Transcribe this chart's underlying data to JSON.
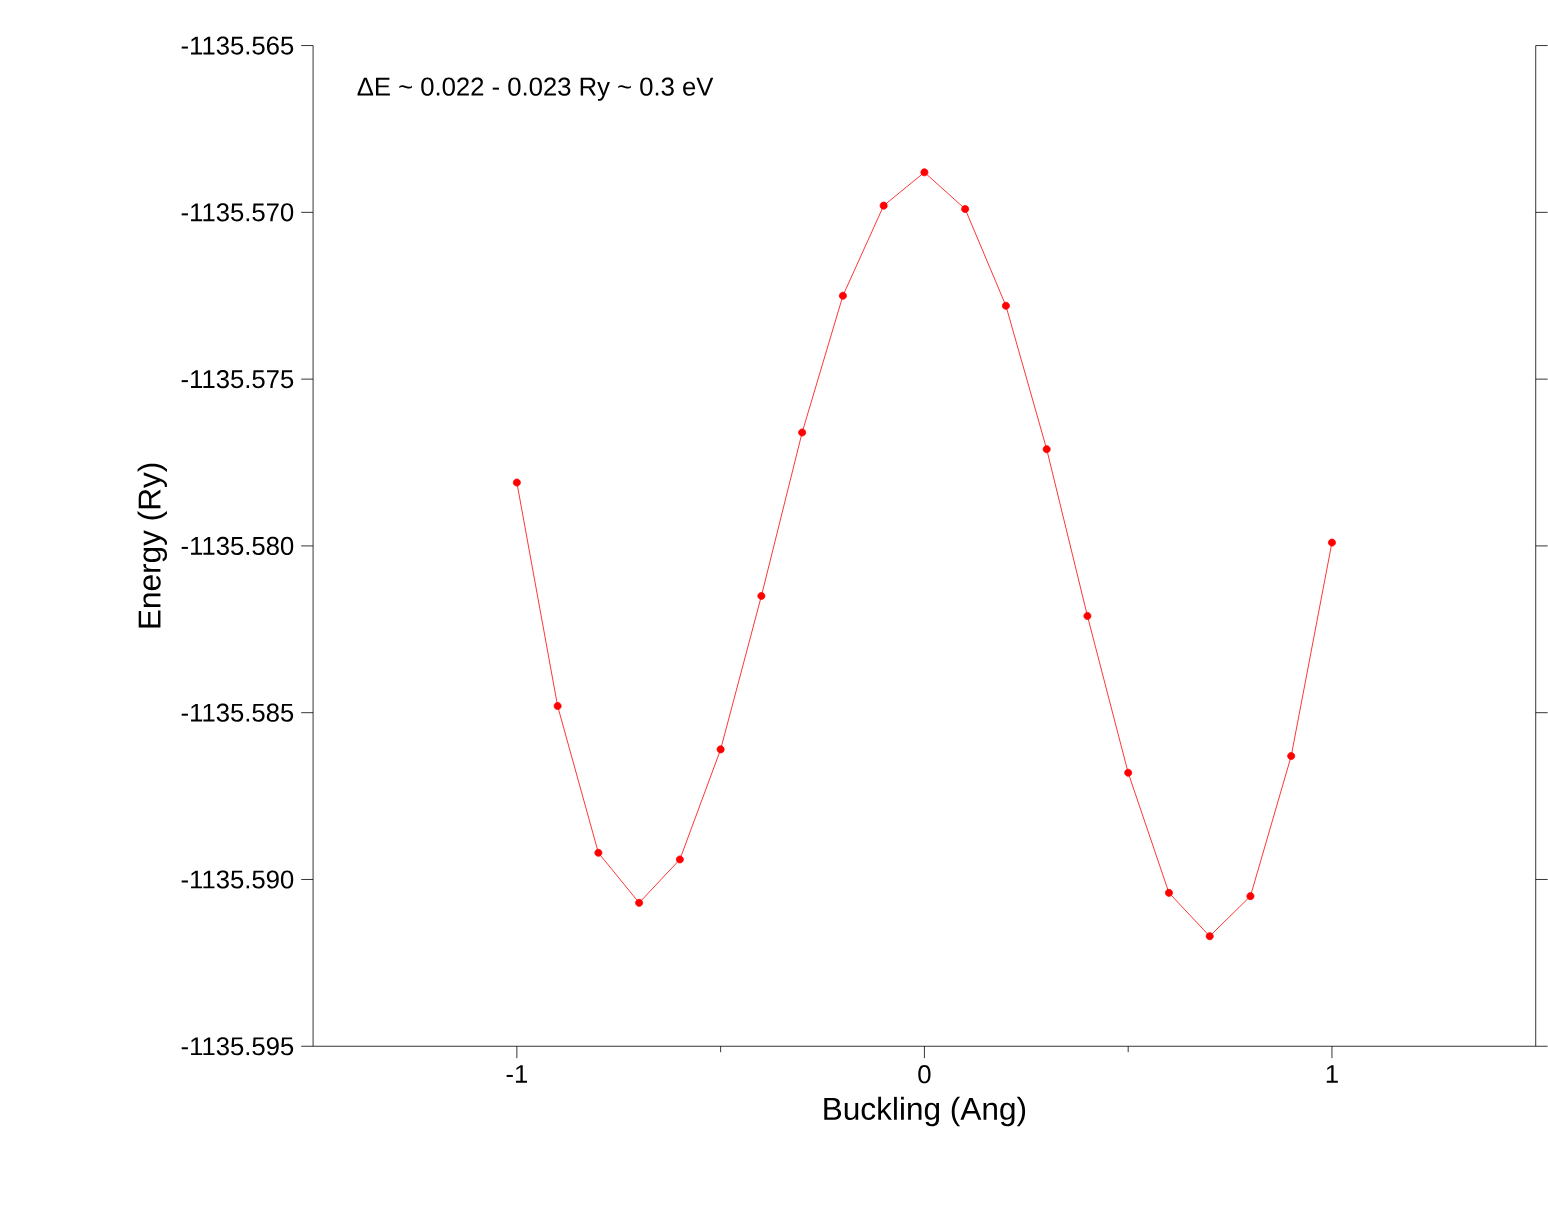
{
  "chart_data": {
    "type": "line",
    "xlabel": "Buckling (Ang)",
    "ylabel": "Energy (Ry)",
    "annotations": [
      "ΔE ~ 0.022 - 0.023 Ry ~ 0.3 eV"
    ],
    "x": [
      -1.0,
      -0.9,
      -0.8,
      -0.7,
      -0.6,
      -0.5,
      -0.4,
      -0.3,
      -0.2,
      -0.1,
      0.0,
      0.1,
      0.2,
      0.3,
      0.4,
      0.5,
      0.6,
      0.7,
      0.8,
      0.9,
      1.0
    ],
    "series": [
      {
        "color": "#ff0000",
        "values": [
          -1135.5781,
          -1135.5848,
          -1135.5892,
          -1135.5907,
          -1135.5894,
          -1135.5861,
          -1135.5815,
          -1135.5766,
          -1135.5725,
          -1135.5698,
          -1135.5688,
          -1135.5699,
          -1135.5728,
          -1135.5771,
          -1135.5821,
          -1135.5868,
          -1135.5904,
          -1135.5917,
          -1135.5905,
          -1135.5863,
          -1135.5799
        ]
      }
    ],
    "marker": "circle",
    "line_style": "solid",
    "xlim": [
      -1.5,
      1.5
    ],
    "xticks": [
      -1,
      0,
      1
    ],
    "ylim": [
      -1135.595,
      -1135.565
    ],
    "yticks": [
      {
        "value": -1135.595,
        "label": "-1135.595"
      },
      {
        "value": -1135.59,
        "label": "-1135.590"
      },
      {
        "value": -1135.585,
        "label": "-1135.585"
      },
      {
        "value": -1135.58,
        "label": "-1135.580"
      },
      {
        "value": -1135.575,
        "label": "-1135.575"
      },
      {
        "value": -1135.57,
        "label": "-1135.570"
      },
      {
        "value": -1135.565,
        "label": "-1135.565"
      }
    ]
  }
}
